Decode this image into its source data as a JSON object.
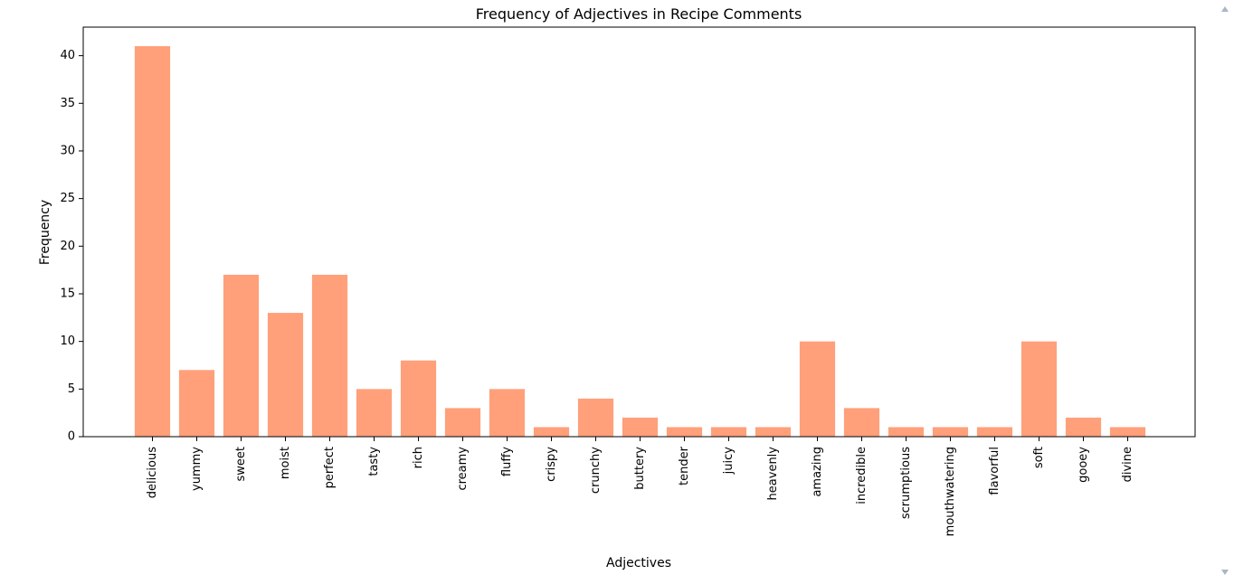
{
  "chart_data": {
    "type": "bar",
    "title": "Frequency of Adjectives in Recipe Comments",
    "xlabel": "Adjectives",
    "ylabel": "Frequency",
    "categories": [
      "delicious",
      "yummy",
      "sweet",
      "moist",
      "perfect",
      "tasty",
      "rich",
      "creamy",
      "fluffy",
      "crispy",
      "crunchy",
      "buttery",
      "tender",
      "juicy",
      "heavenly",
      "amazing",
      "incredible",
      "scrumptious",
      "mouthwatering",
      "flavorful",
      "soft",
      "gooey",
      "divine"
    ],
    "values": [
      41,
      7,
      17,
      13,
      17,
      5,
      8,
      3,
      5,
      1,
      4,
      2,
      1,
      1,
      1,
      10,
      3,
      1,
      1,
      1,
      10,
      2,
      1
    ],
    "ylim": [
      0,
      43
    ],
    "yticks": [
      0,
      5,
      10,
      15,
      20,
      25,
      30,
      35,
      40
    ],
    "bar_color": "#FFA07A",
    "grid": false,
    "legend": "none"
  }
}
